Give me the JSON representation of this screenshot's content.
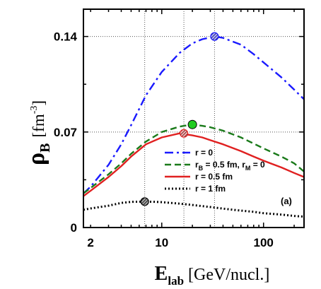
{
  "chart_data": {
    "type": "line",
    "x_scale": "log",
    "xlim": [
      1.7,
      250
    ],
    "ylim": [
      0,
      0.16
    ],
    "x_ticks": [
      2,
      10,
      100
    ],
    "x_tick_labels": [
      "2",
      "10",
      "100"
    ],
    "y_ticks": [
      0,
      0.07,
      0.14
    ],
    "y_tick_labels": [
      "0",
      "0.07",
      "0.14"
    ],
    "ylabel": {
      "main": "ρ",
      "sub": "B",
      "unit_open": "[fm",
      "unit_sup": "-3",
      "unit_close": "]"
    },
    "xlabel": {
      "main": "E",
      "sub": "lab",
      "unit": "[GeV/nucl.]"
    },
    "panel_label": "(a)",
    "grid_x": [
      6.8,
      16.5,
      33
    ],
    "grid_y": [
      0.07,
      0.14
    ],
    "legend_placement": "center-right",
    "legend": [
      {
        "label": "r = 0",
        "color": "#1a1aff",
        "dash": "dash-dot"
      },
      {
        "label": "r",
        "label_sub": "B",
        "label_mid": " = 0.5 fm, r",
        "label_sub2": "M",
        "label_end": " = 0",
        "color": "#1a7a1a",
        "dash": "dash"
      },
      {
        "label": "r = 0.5 fm",
        "color": "#e02020",
        "dash": "solid"
      },
      {
        "label": "r = 1 fm",
        "color": "#000000",
        "dash": "dot"
      }
    ],
    "series": [
      {
        "color": "#1a1aff",
        "dash": "dash-dot",
        "x": [
          1.7,
          2,
          3,
          4,
          5,
          7,
          10,
          15,
          20,
          25,
          33,
          40,
          60,
          80,
          100,
          150,
          200,
          250
        ],
        "y": [
          0.025,
          0.03,
          0.046,
          0.061,
          0.075,
          0.097,
          0.114,
          0.128,
          0.135,
          0.138,
          0.14,
          0.139,
          0.134,
          0.127,
          0.121,
          0.11,
          0.101,
          0.094
        ]
      },
      {
        "color": "#1a7a1a",
        "dash": "dash",
        "x": [
          1.7,
          2,
          3,
          4,
          5,
          7,
          10,
          15,
          20,
          25,
          30,
          40,
          60,
          80,
          100,
          150,
          200,
          250
        ],
        "y": [
          0.025,
          0.029,
          0.039,
          0.047,
          0.054,
          0.063,
          0.07,
          0.074,
          0.0755,
          0.0745,
          0.0735,
          0.071,
          0.066,
          0.0615,
          0.058,
          0.052,
          0.047,
          0.041
        ]
      },
      {
        "color": "#e02020",
        "dash": "solid",
        "x": [
          1.7,
          2,
          3,
          4,
          5,
          7,
          10,
          15,
          16.5,
          20,
          25,
          30,
          40,
          60,
          80,
          100,
          150,
          200,
          250
        ],
        "y": [
          0.023,
          0.027,
          0.037,
          0.045,
          0.052,
          0.061,
          0.066,
          0.069,
          0.0685,
          0.0675,
          0.066,
          0.064,
          0.061,
          0.056,
          0.052,
          0.049,
          0.044,
          0.04,
          0.037
        ]
      },
      {
        "color": "#000000",
        "dash": "dot",
        "x": [
          1.7,
          2,
          3,
          4,
          5,
          6.8,
          8,
          10,
          15,
          20,
          30,
          50,
          80,
          100,
          150,
          200,
          250
        ],
        "y": [
          0.013,
          0.014,
          0.016,
          0.018,
          0.0188,
          0.019,
          0.0189,
          0.0186,
          0.0175,
          0.0165,
          0.015,
          0.013,
          0.0115,
          0.0105,
          0.0095,
          0.0085,
          0.008
        ]
      }
    ],
    "markers": [
      {
        "x": 33,
        "y": 0.14,
        "style": "hatched",
        "color": "#1a1aff"
      },
      {
        "x": 20,
        "y": 0.0755,
        "style": "filled",
        "color": "#22cc22"
      },
      {
        "x": 16.5,
        "y": 0.069,
        "style": "hatched",
        "color": "#e02020"
      },
      {
        "x": 6.8,
        "y": 0.019,
        "style": "hatched",
        "color": "#000000"
      }
    ]
  }
}
